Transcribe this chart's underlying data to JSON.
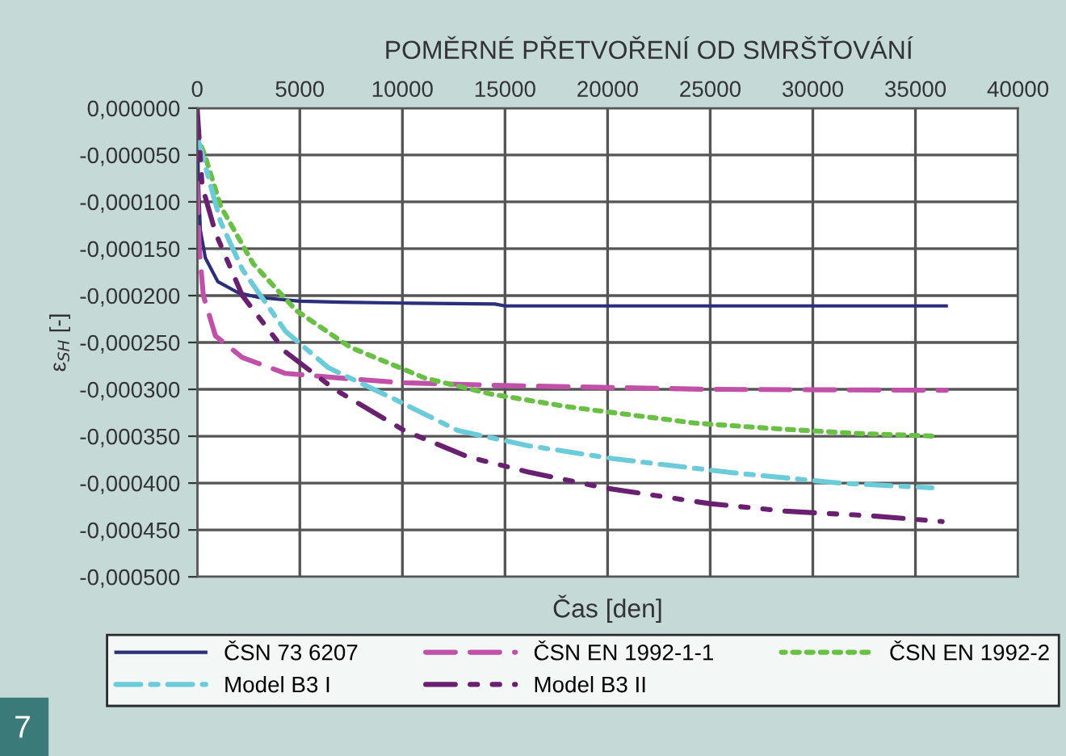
{
  "chart_data": {
    "type": "line",
    "title": "POMĚRNÉ PŘETVOŘENÍ OD SMRŠŤOVÁNÍ",
    "xlabel": "Čas [den]",
    "ylabel": "ε$_{SH}$ [-]",
    "xlim": [
      0,
      40000
    ],
    "xticks": [
      0,
      5000,
      10000,
      15000,
      20000,
      25000,
      30000,
      35000,
      40000
    ],
    "ylim": [
      -0.0005,
      0
    ],
    "yticks": [
      {
        "value": 0,
        "label": "0,000000"
      },
      {
        "value": -5e-05,
        "label": "-0,000050"
      },
      {
        "value": -0.0001,
        "label": "-0,000100"
      },
      {
        "value": -0.00015,
        "label": "-0,000150"
      },
      {
        "value": -0.0002,
        "label": "-0,000200"
      },
      {
        "value": -0.00025,
        "label": "-0,000250"
      },
      {
        "value": -0.0003,
        "label": "-0,000300"
      },
      {
        "value": -0.00035,
        "label": "-0,000350"
      },
      {
        "value": -0.0004,
        "label": "-0,000400"
      },
      {
        "value": -0.00045,
        "label": "-0,000450"
      },
      {
        "value": -0.0005,
        "label": "-0,000500"
      }
    ],
    "grid": true,
    "legend": "bottom",
    "marker": "none",
    "annotations": [
      "7"
    ],
    "series": [
      {
        "name": "ČSN 73 6207",
        "color": "#2b2f7a",
        "line_style": "solid",
        "x": [
          0,
          50,
          150,
          400,
          1000,
          2000,
          3000,
          5000,
          7000,
          10000,
          14500,
          15000,
          36500
        ],
        "values": [
          0,
          -7e-05,
          -0.00013,
          -0.00016,
          -0.000185,
          -0.000197,
          -0.000202,
          -0.000206,
          -0.000207,
          -0.000208,
          -0.000209,
          -0.000211,
          -0.000211
        ]
      },
      {
        "name": "ČSN EN 1992-1-1",
        "color": "#c050a8",
        "line_style": "dashed",
        "x": [
          0,
          100,
          300,
          890,
          2200,
          4300,
          7000,
          10000,
          15000,
          25000,
          36500
        ],
        "values": [
          -8e-05,
          -0.00015,
          -0.0002,
          -0.000243,
          -0.000266,
          -0.000283,
          -0.000288,
          -0.000293,
          -0.000296,
          -0.0003,
          -0.000301
        ]
      },
      {
        "name": "ČSN EN 1992-2",
        "color": "#6abf45",
        "line_style": "dotted",
        "x": [
          0,
          370,
          1150,
          2730,
          4830,
          7450,
          11100,
          14300,
          18200,
          24250,
          28200,
          32100,
          36050
        ],
        "values": [
          -3e-05,
          -5e-05,
          -0.000105,
          -0.000166,
          -0.000216,
          -0.000255,
          -0.000288,
          -0.000305,
          -0.000319,
          -0.000336,
          -0.000342,
          -0.000347,
          -0.00035
        ]
      },
      {
        "name": "Model B3 I",
        "color": "#6ccbd9",
        "line_style": "dashdot",
        "x": [
          0,
          370,
          1150,
          2200,
          4300,
          6400,
          9560,
          12700,
          16100,
          20300,
          26100,
          31300,
          35800
        ],
        "values": [
          -3e-05,
          -6e-05,
          -0.000122,
          -0.000172,
          -0.000238,
          -0.000277,
          -0.00031,
          -0.000344,
          -0.00036,
          -0.000374,
          -0.000389,
          -0.0004,
          -0.000405
        ]
      },
      {
        "name": "Model B3 II",
        "color": "#6a2070",
        "line_style": "dashdotdot",
        "x": [
          0,
          240,
          890,
          2200,
          4300,
          6700,
          10100,
          13200,
          16100,
          19800,
          25000,
          28700,
          32900,
          36300
        ],
        "values": [
          0,
          -8.3e-05,
          -0.000133,
          -0.0002,
          -0.00026,
          -0.0003,
          -0.000344,
          -0.000372,
          -0.000388,
          -0.000405,
          -0.000422,
          -0.00043,
          -0.000435,
          -0.000441
        ]
      }
    ]
  }
}
